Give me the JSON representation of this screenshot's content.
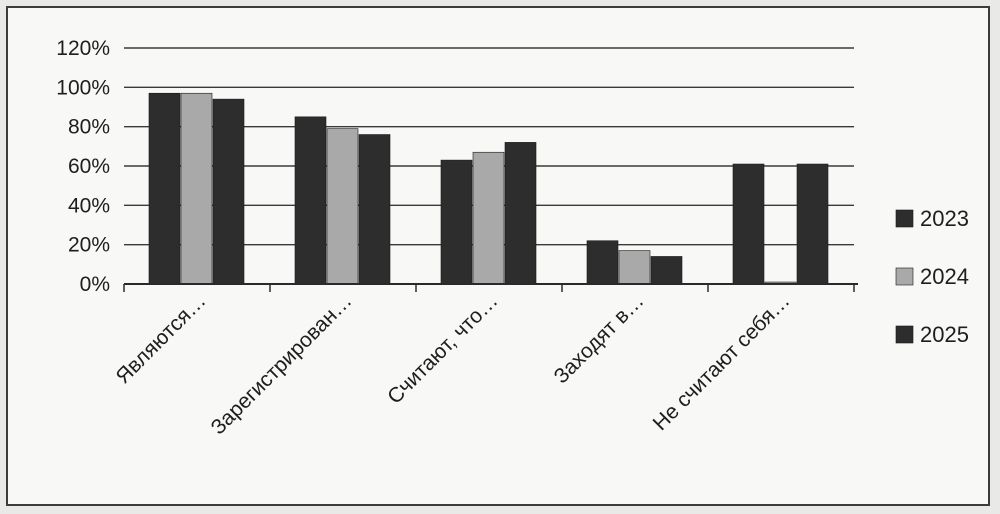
{
  "chart_data": {
    "type": "bar",
    "categories": [
      "Являются…",
      "Зарегистрирован…",
      "Считают, что…",
      "Заходят в…",
      "Не считают себя…"
    ],
    "series": [
      {
        "name": "2023",
        "values": [
          97,
          85,
          63,
          22,
          61
        ],
        "color": "#2d2d2d"
      },
      {
        "name": "2024",
        "values": [
          97,
          79,
          67,
          17,
          1
        ],
        "color": "#a9a9a9"
      },
      {
        "name": "2025",
        "values": [
          94,
          76,
          72,
          14,
          61
        ],
        "color": "#2d2d2d"
      }
    ],
    "ylim": [
      0,
      120
    ],
    "yticks": [
      "0%",
      "20%",
      "40%",
      "60%",
      "80%",
      "100%",
      "120%"
    ],
    "ytick_values": [
      0,
      20,
      40,
      60,
      80,
      100,
      120
    ],
    "grid": true,
    "legend_position": "right",
    "title": "",
    "xlabel": "",
    "ylabel": ""
  }
}
